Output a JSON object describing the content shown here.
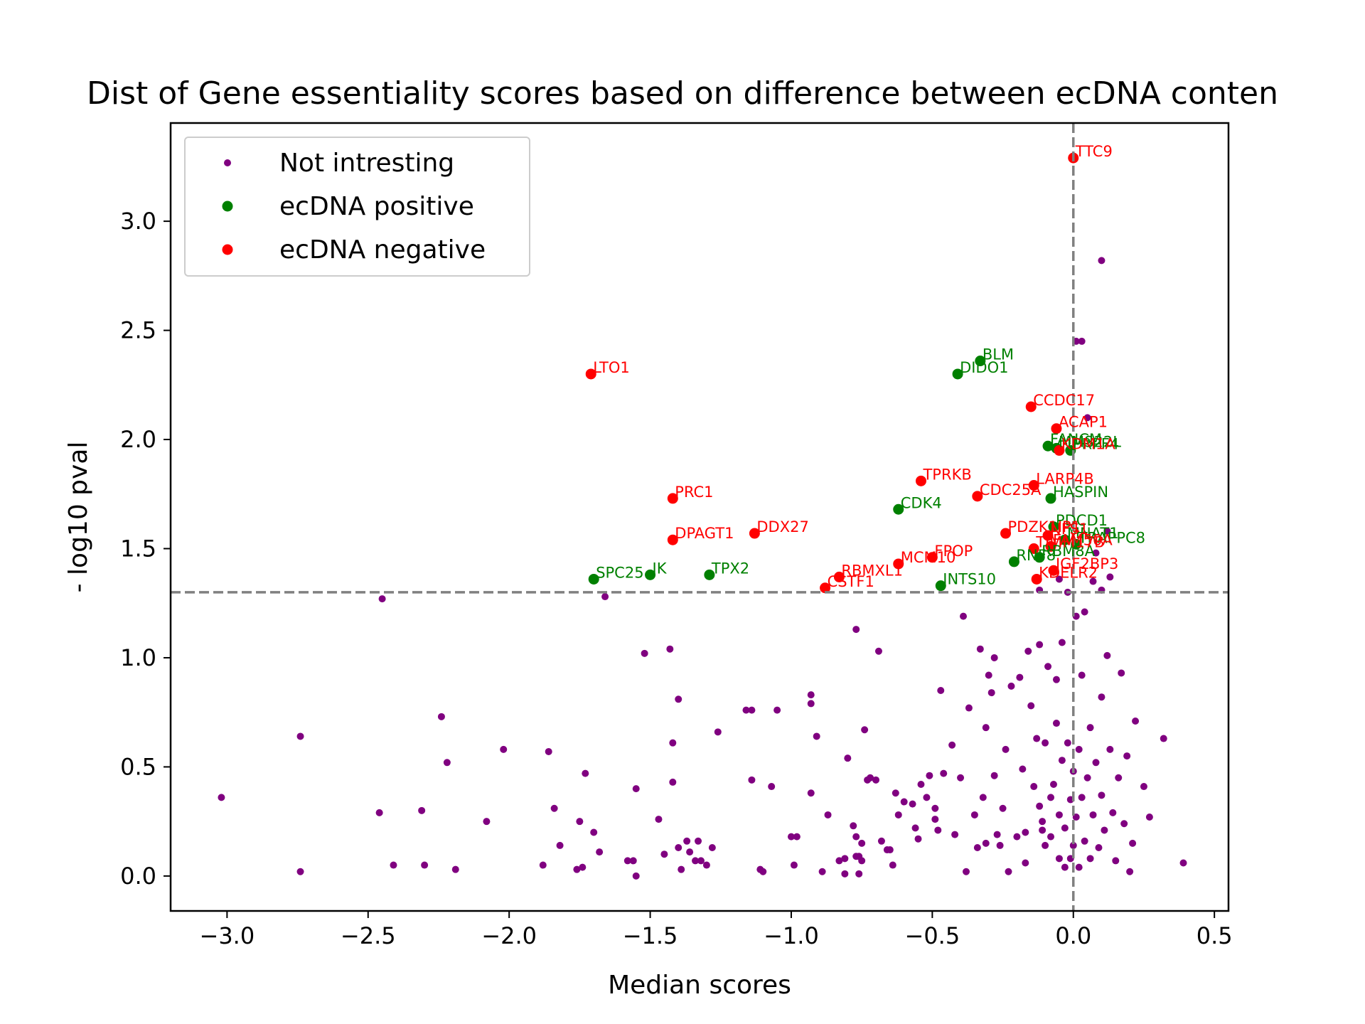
{
  "chart_data": {
    "type": "scatter",
    "title": "Dist of Gene essentiality scores based on difference between ecDNA conten",
    "xlabel": "Median scores",
    "ylabel": "- log10 pval",
    "xlim": [
      -3.2,
      0.55
    ],
    "ylim": [
      -0.16,
      3.45
    ],
    "xticks": [
      -3.0,
      -2.5,
      -2.0,
      -1.5,
      -1.0,
      -0.5,
      0.0,
      0.5
    ],
    "xtick_labels": [
      "−3.0",
      "−2.5",
      "−2.0",
      "−1.5",
      "−1.0",
      "−0.5",
      "0.0",
      "0.5"
    ],
    "yticks": [
      0.0,
      0.5,
      1.0,
      1.5,
      2.0,
      2.5,
      3.0
    ],
    "ytick_labels": [
      "0.0",
      "0.5",
      "1.0",
      "1.5",
      "2.0",
      "2.5",
      "3.0"
    ],
    "reference_lines": {
      "vertical_x": 0.0,
      "horizontal_y": 1.3,
      "style": "dashed",
      "color": "#808080"
    },
    "grid": false,
    "legend": {
      "placement": "top-left"
    },
    "colors": {
      "not_interesting": "#800080",
      "ecdna_positive": "#008000",
      "ecdna_negative": "#ff0000",
      "ref_line": "#808080"
    },
    "series": [
      {
        "name": "Not intresting",
        "color": "#800080",
        "points": [
          [
            -3.02,
            0.36
          ],
          [
            -2.74,
            0.64
          ],
          [
            -2.74,
            0.02
          ],
          [
            -2.46,
            0.29
          ],
          [
            -2.45,
            1.27
          ],
          [
            -2.41,
            0.05
          ],
          [
            -2.31,
            0.3
          ],
          [
            -2.3,
            0.05
          ],
          [
            -2.24,
            0.73
          ],
          [
            -2.22,
            0.52
          ],
          [
            -2.19,
            0.03
          ],
          [
            -2.08,
            0.25
          ],
          [
            -2.02,
            0.58
          ],
          [
            -1.88,
            0.05
          ],
          [
            -1.86,
            0.57
          ],
          [
            -1.84,
            0.31
          ],
          [
            -1.82,
            0.14
          ],
          [
            -1.76,
            0.03
          ],
          [
            -1.75,
            0.25
          ],
          [
            -1.74,
            0.04
          ],
          [
            -1.73,
            0.47
          ],
          [
            -1.7,
            0.2
          ],
          [
            -1.68,
            0.11
          ],
          [
            -1.66,
            1.28
          ],
          [
            -1.58,
            0.07
          ],
          [
            -1.56,
            0.07
          ],
          [
            -1.55,
            0.4
          ],
          [
            -1.55,
            0.0
          ],
          [
            -1.52,
            1.02
          ],
          [
            -1.47,
            0.26
          ],
          [
            -1.45,
            0.1
          ],
          [
            -1.43,
            1.04
          ],
          [
            -1.42,
            0.61
          ],
          [
            -1.42,
            0.43
          ],
          [
            -1.4,
            0.81
          ],
          [
            -1.4,
            0.13
          ],
          [
            -1.39,
            0.03
          ],
          [
            -1.37,
            0.16
          ],
          [
            -1.36,
            0.11
          ],
          [
            -1.34,
            0.07
          ],
          [
            -1.32,
            0.07
          ],
          [
            -1.33,
            0.16
          ],
          [
            -1.3,
            0.05
          ],
          [
            -1.28,
            0.13
          ],
          [
            -1.26,
            0.66
          ],
          [
            -1.16,
            0.76
          ],
          [
            -1.14,
            0.76
          ],
          [
            -1.14,
            0.44
          ],
          [
            -1.11,
            0.03
          ],
          [
            -1.1,
            0.02
          ],
          [
            -1.07,
            0.41
          ],
          [
            -1.05,
            0.76
          ],
          [
            -1.0,
            0.18
          ],
          [
            -0.99,
            0.05
          ],
          [
            -0.98,
            0.18
          ],
          [
            -0.93,
            0.79
          ],
          [
            -0.93,
            0.83
          ],
          [
            -0.93,
            0.38
          ],
          [
            -0.91,
            0.64
          ],
          [
            -0.89,
            0.02
          ],
          [
            -0.87,
            0.28
          ],
          [
            -0.83,
            0.07
          ],
          [
            -0.81,
            0.08
          ],
          [
            -0.81,
            0.01
          ],
          [
            -0.8,
            0.54
          ],
          [
            -0.78,
            0.23
          ],
          [
            -0.77,
            1.13
          ],
          [
            -0.77,
            0.18
          ],
          [
            -0.77,
            0.09
          ],
          [
            -0.76,
            0.09
          ],
          [
            -0.76,
            0.01
          ],
          [
            -0.75,
            0.07
          ],
          [
            -0.75,
            0.15
          ],
          [
            -0.74,
            0.67
          ],
          [
            -0.73,
            0.44
          ],
          [
            -0.72,
            0.45
          ],
          [
            -0.7,
            0.44
          ],
          [
            -0.69,
            1.03
          ],
          [
            -0.68,
            0.16
          ],
          [
            -0.66,
            0.12
          ],
          [
            -0.65,
            0.12
          ],
          [
            -0.64,
            0.05
          ],
          [
            -0.63,
            0.38
          ],
          [
            -0.62,
            0.28
          ],
          [
            -0.6,
            0.34
          ],
          [
            -0.57,
            0.33
          ],
          [
            -0.56,
            0.22
          ],
          [
            -0.55,
            0.17
          ],
          [
            -0.54,
            0.42
          ],
          [
            -0.52,
            0.36
          ],
          [
            -0.51,
            0.46
          ],
          [
            -0.49,
            0.26
          ],
          [
            -0.49,
            0.31
          ],
          [
            -0.48,
            0.21
          ],
          [
            -0.47,
            0.85
          ],
          [
            -0.46,
            0.47
          ],
          [
            -0.43,
            0.6
          ],
          [
            -0.42,
            0.19
          ],
          [
            -0.4,
            0.45
          ],
          [
            -0.39,
            1.19
          ],
          [
            -0.38,
            0.02
          ],
          [
            -0.37,
            0.77
          ],
          [
            -0.35,
            0.28
          ],
          [
            -0.34,
            0.13
          ],
          [
            -0.33,
            1.04
          ],
          [
            -0.32,
            0.36
          ],
          [
            -0.31,
            0.15
          ],
          [
            -0.31,
            0.68
          ],
          [
            -0.3,
            0.92
          ],
          [
            -0.29,
            0.84
          ],
          [
            -0.28,
            1.0
          ],
          [
            -0.28,
            0.46
          ],
          [
            -0.27,
            0.19
          ],
          [
            -0.26,
            0.14
          ],
          [
            -0.25,
            0.31
          ],
          [
            -0.24,
            0.58
          ],
          [
            -0.23,
            0.02
          ],
          [
            -0.22,
            0.87
          ],
          [
            -0.2,
            0.18
          ],
          [
            -0.19,
            0.91
          ],
          [
            -0.18,
            0.49
          ],
          [
            -0.17,
            0.2
          ],
          [
            -0.17,
            0.06
          ],
          [
            -0.16,
            1.03
          ],
          [
            -0.15,
            0.78
          ],
          [
            -0.14,
            0.41
          ],
          [
            -0.13,
            0.63
          ],
          [
            -0.12,
            1.06
          ],
          [
            -0.12,
            0.32
          ],
          [
            -0.11,
            0.21
          ],
          [
            -0.11,
            0.25
          ],
          [
            -0.1,
            0.14
          ],
          [
            -0.1,
            0.61
          ],
          [
            -0.09,
            0.96
          ],
          [
            -0.08,
            0.36
          ],
          [
            -0.08,
            0.18
          ],
          [
            -0.07,
            0.42
          ],
          [
            -0.06,
            0.9
          ],
          [
            -0.06,
            0.7
          ],
          [
            -0.05,
            0.28
          ],
          [
            -0.05,
            0.08
          ],
          [
            -0.04,
            0.53
          ],
          [
            -0.04,
            1.07
          ],
          [
            -0.03,
            0.22
          ],
          [
            -0.03,
            0.04
          ],
          [
            -0.02,
            0.61
          ],
          [
            -0.02,
            1.3
          ],
          [
            -0.01,
            0.35
          ],
          [
            -0.01,
            0.08
          ],
          [
            0.0,
            0.48
          ],
          [
            0.0,
            0.14
          ],
          [
            0.01,
            1.19
          ],
          [
            0.01,
            0.27
          ],
          [
            0.02,
            0.58
          ],
          [
            0.02,
            0.04
          ],
          [
            0.03,
            0.92
          ],
          [
            0.03,
            0.36
          ],
          [
            0.04,
            1.21
          ],
          [
            0.04,
            0.16
          ],
          [
            0.05,
            0.45
          ],
          [
            0.06,
            0.08
          ],
          [
            0.06,
            0.68
          ],
          [
            0.07,
            0.28
          ],
          [
            0.08,
            0.52
          ],
          [
            0.09,
            0.13
          ],
          [
            0.1,
            0.82
          ],
          [
            0.1,
            0.37
          ],
          [
            0.11,
            0.21
          ],
          [
            0.12,
            1.01
          ],
          [
            0.13,
            0.58
          ],
          [
            0.14,
            0.29
          ],
          [
            0.15,
            0.07
          ],
          [
            0.16,
            0.45
          ],
          [
            0.17,
            0.93
          ],
          [
            0.18,
            0.24
          ],
          [
            0.19,
            0.55
          ],
          [
            0.2,
            0.02
          ],
          [
            0.21,
            0.15
          ],
          [
            0.22,
            0.71
          ],
          [
            0.25,
            0.41
          ],
          [
            0.27,
            0.27
          ],
          [
            0.32,
            0.63
          ],
          [
            0.39,
            0.06
          ],
          [
            0.03,
            2.45
          ],
          [
            0.01,
            2.45
          ],
          [
            0.1,
            2.82
          ],
          [
            0.05,
            2.1
          ],
          [
            0.08,
            1.48
          ],
          [
            0.12,
            1.58
          ],
          [
            0.13,
            1.37
          ],
          [
            0.07,
            1.35
          ],
          [
            0.1,
            1.31
          ],
          [
            -0.12,
            1.31
          ],
          [
            -0.05,
            1.36
          ]
        ]
      },
      {
        "name": "ecDNA positive",
        "color": "#008000",
        "points": [
          {
            "x": -0.33,
            "y": 2.36,
            "label": "BLM"
          },
          {
            "x": -0.41,
            "y": 2.3,
            "label": "DIDO1"
          },
          {
            "x": -0.09,
            "y": 1.97,
            "label": "FANCM"
          },
          {
            "x": -0.01,
            "y": 1.95,
            "label": "PRPF4"
          },
          {
            "x": -0.06,
            "y": 1.96,
            "label": "MMS22L"
          },
          {
            "x": -0.08,
            "y": 1.73,
            "label": "HASPIN"
          },
          {
            "x": -0.62,
            "y": 1.68,
            "label": "CDK4"
          },
          {
            "x": -0.07,
            "y": 1.6,
            "label": "PDCD1"
          },
          {
            "x": -0.03,
            "y": 1.54,
            "label": "MNAT1"
          },
          {
            "x": 0.01,
            "y": 1.52,
            "label": "TRAPPC8"
          },
          {
            "x": -0.12,
            "y": 1.46,
            "label": "RBM8A"
          },
          {
            "x": -0.21,
            "y": 1.44,
            "label": "RNF8"
          },
          {
            "x": -1.7,
            "y": 1.36,
            "label": "SPC25"
          },
          {
            "x": -1.5,
            "y": 1.38,
            "label": "IK"
          },
          {
            "x": -1.29,
            "y": 1.38,
            "label": "TPX2"
          },
          {
            "x": -0.47,
            "y": 1.33,
            "label": "INTS10"
          }
        ]
      },
      {
        "name": "ecDNA negative",
        "color": "#ff0000",
        "points": [
          {
            "x": 0.0,
            "y": 3.29,
            "label": "TTC9"
          },
          {
            "x": -1.71,
            "y": 2.3,
            "label": "LTO1"
          },
          {
            "x": -0.15,
            "y": 2.15,
            "label": "CCDC17"
          },
          {
            "x": -0.06,
            "y": 2.05,
            "label": "ACAP1"
          },
          {
            "x": -0.05,
            "y": 1.95,
            "label": "KDM1A"
          },
          {
            "x": -0.54,
            "y": 1.81,
            "label": "TPRKB"
          },
          {
            "x": -0.14,
            "y": 1.79,
            "label": "LARP4B"
          },
          {
            "x": -0.34,
            "y": 1.74,
            "label": "CDC25A"
          },
          {
            "x": -1.42,
            "y": 1.73,
            "label": "PRC1"
          },
          {
            "x": -1.13,
            "y": 1.57,
            "label": "DDX27"
          },
          {
            "x": -1.42,
            "y": 1.54,
            "label": "DPAGT1"
          },
          {
            "x": -0.24,
            "y": 1.57,
            "label": "PDZK1IP1"
          },
          {
            "x": -0.09,
            "y": 1.56,
            "label": "NFS1"
          },
          {
            "x": -0.08,
            "y": 1.51,
            "label": "FAM50A"
          },
          {
            "x": -0.14,
            "y": 1.5,
            "label": "TIMM17B"
          },
          {
            "x": -0.5,
            "y": 1.46,
            "label": "FPOP"
          },
          {
            "x": -0.62,
            "y": 1.43,
            "label": "MCM10"
          },
          {
            "x": -0.07,
            "y": 1.4,
            "label": "IGF2BP3"
          },
          {
            "x": -0.83,
            "y": 1.37,
            "label": "RBMXL1"
          },
          {
            "x": -0.13,
            "y": 1.36,
            "label": "KDELR2"
          },
          {
            "x": -0.88,
            "y": 1.32,
            "label": "CSTF1"
          }
        ]
      }
    ]
  }
}
